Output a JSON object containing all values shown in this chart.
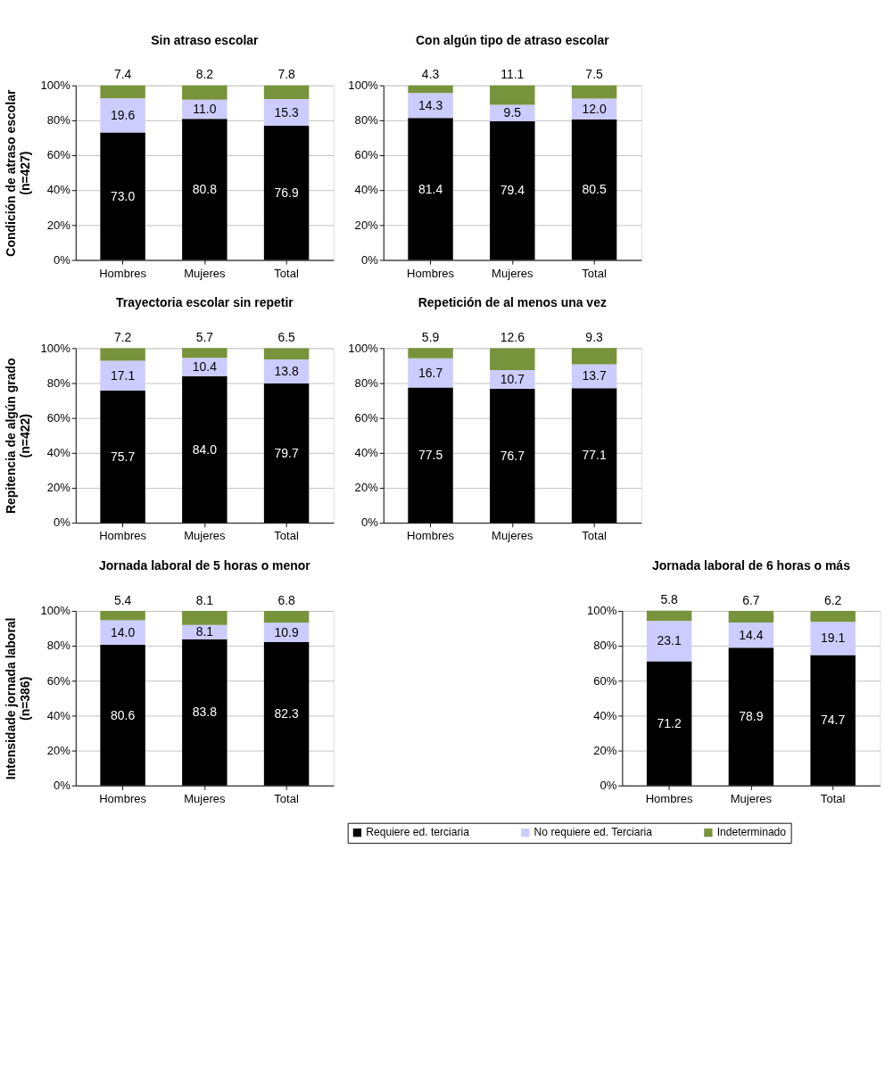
{
  "chart_data": [
    {
      "type": "bar",
      "stacked": true,
      "grid": "y",
      "legend": false,
      "title": "Sin atraso escolar",
      "ylabel": "Condición de atraso escolar\n(n=427)",
      "categories": [
        "Hombres",
        "Mujeres",
        "Total"
      ],
      "ylim": [
        0,
        100
      ],
      "yticks": [
        {
          "value": 0,
          "label": "0%"
        },
        {
          "value": 20,
          "label": "20%"
        },
        {
          "value": 40,
          "label": "40%"
        },
        {
          "value": 60,
          "label": "60%"
        },
        {
          "value": 80,
          "label": "80%"
        },
        {
          "value": 100,
          "label": "100%"
        }
      ],
      "series": [
        {
          "color": "#000000",
          "values": [
            73.0,
            80.8,
            76.9
          ],
          "value_labels": [
            "73.0",
            "80.8",
            "76.9"
          ]
        },
        {
          "color": "#ccccff",
          "values": [
            19.6,
            11.0,
            15.3
          ],
          "value_labels": [
            "19.6",
            "11.0",
            "15.3"
          ]
        },
        {
          "color": "#77933c",
          "values": [
            7.4,
            8.2,
            7.8
          ],
          "value_labels": [
            "7.4",
            "8.2",
            "7.8"
          ]
        }
      ]
    },
    {
      "type": "bar",
      "stacked": true,
      "grid": "y",
      "legend": false,
      "title": "Con algún tipo de atraso escolar",
      "categories": [
        "Hombres",
        "Mujeres",
        "Total"
      ],
      "ylim": [
        0,
        100
      ],
      "yticks": [
        {
          "value": 0,
          "label": "0%"
        },
        {
          "value": 20,
          "label": "20%"
        },
        {
          "value": 40,
          "label": "40%"
        },
        {
          "value": 60,
          "label": "60%"
        },
        {
          "value": 80,
          "label": "80%"
        },
        {
          "value": 100,
          "label": "100%"
        }
      ],
      "series": [
        {
          "color": "#000000",
          "values": [
            81.4,
            79.4,
            80.5
          ],
          "value_labels": [
            "81.4",
            "79.4",
            "80.5"
          ]
        },
        {
          "color": "#ccccff",
          "values": [
            14.3,
            9.5,
            12.0
          ],
          "value_labels": [
            "14.3",
            "9.5",
            "12.0"
          ]
        },
        {
          "color": "#77933c",
          "values": [
            4.3,
            11.1,
            7.5
          ],
          "value_labels": [
            "4.3",
            "11.1",
            "7.5"
          ]
        }
      ]
    },
    {
      "type": "bar",
      "stacked": true,
      "grid": "y",
      "legend": false,
      "title": "Trayectoria escolar sin repetir",
      "ylabel": "Repitencia de algún grado\n(n=422)",
      "categories": [
        "Hombres",
        "Mujeres",
        "Total"
      ],
      "ylim": [
        0,
        100
      ],
      "yticks": [
        {
          "value": 0,
          "label": "0%"
        },
        {
          "value": 20,
          "label": "20%"
        },
        {
          "value": 40,
          "label": "40%"
        },
        {
          "value": 60,
          "label": "60%"
        },
        {
          "value": 80,
          "label": "80%"
        },
        {
          "value": 100,
          "label": "100%"
        }
      ],
      "series": [
        {
          "color": "#000000",
          "values": [
            75.7,
            84.0,
            79.7
          ],
          "value_labels": [
            "75.7",
            "84.0",
            "79.7"
          ]
        },
        {
          "color": "#ccccff",
          "values": [
            17.1,
            10.4,
            13.8
          ],
          "value_labels": [
            "17.1",
            "10.4",
            "13.8"
          ]
        },
        {
          "color": "#77933c",
          "values": [
            7.2,
            5.7,
            6.5
          ],
          "value_labels": [
            "7.2",
            "5.7",
            "6.5"
          ]
        }
      ]
    },
    {
      "type": "bar",
      "stacked": true,
      "grid": "y",
      "legend": false,
      "title": "Repetición de al menos una vez",
      "categories": [
        "Hombres",
        "Mujeres",
        "Total"
      ],
      "ylim": [
        0,
        100
      ],
      "yticks": [
        {
          "value": 0,
          "label": "0%"
        },
        {
          "value": 20,
          "label": "20%"
        },
        {
          "value": 40,
          "label": "40%"
        },
        {
          "value": 60,
          "label": "60%"
        },
        {
          "value": 80,
          "label": "80%"
        },
        {
          "value": 100,
          "label": "100%"
        }
      ],
      "series": [
        {
          "color": "#000000",
          "values": [
            77.5,
            76.7,
            77.1
          ],
          "value_labels": [
            "77.5",
            "76.7",
            "77.1"
          ]
        },
        {
          "color": "#ccccff",
          "values": [
            16.7,
            10.7,
            13.7
          ],
          "value_labels": [
            "16.7",
            "10.7",
            "13.7"
          ]
        },
        {
          "color": "#77933c",
          "values": [
            5.9,
            12.6,
            9.3
          ],
          "value_labels": [
            "5.9",
            "12.6",
            "9.3"
          ]
        }
      ]
    },
    {
      "type": "bar",
      "stacked": true,
      "grid": "y",
      "legend": false,
      "title": "Jornada laboral de 5 horas o menor",
      "ylabel": "Intensidade jornada laboral\n(n=386)",
      "categories": [
        "Hombres",
        "Mujeres",
        "Total"
      ],
      "ylim": [
        0,
        100
      ],
      "yticks": [
        {
          "value": 0,
          "label": "0%"
        },
        {
          "value": 20,
          "label": "20%"
        },
        {
          "value": 40,
          "label": "40%"
        },
        {
          "value": 60,
          "label": "60%"
        },
        {
          "value": 80,
          "label": "80%"
        },
        {
          "value": 100,
          "label": "100%"
        }
      ],
      "series": [
        {
          "color": "#000000",
          "values": [
            80.6,
            83.8,
            82.3
          ],
          "value_labels": [
            "80.6",
            "83.8",
            "82.3"
          ]
        },
        {
          "color": "#ccccff",
          "values": [
            14.0,
            8.1,
            10.9
          ],
          "value_labels": [
            "14.0",
            "8.1",
            "10.9"
          ]
        },
        {
          "color": "#77933c",
          "values": [
            5.4,
            8.1,
            6.8
          ],
          "value_labels": [
            "5.4",
            "8.1",
            "6.8"
          ]
        }
      ]
    },
    {
      "type": "bar",
      "stacked": true,
      "grid": "y",
      "legend": "bottom",
      "title": "Jornada laboral de 6 horas o más",
      "categories": [
        "Hombres",
        "Mujeres",
        "Total"
      ],
      "ylim": [
        0,
        100
      ],
      "yticks": [
        {
          "value": 0,
          "label": "0%"
        },
        {
          "value": 20,
          "label": "20%"
        },
        {
          "value": 40,
          "label": "40%"
        },
        {
          "value": 60,
          "label": "60%"
        },
        {
          "value": 80,
          "label": "80%"
        },
        {
          "value": 100,
          "label": "100%"
        }
      ],
      "series": [
        {
          "name": "Requiere ed. terciaria",
          "color": "#000000",
          "values": [
            71.2,
            78.9,
            74.7
          ],
          "value_labels": [
            "71.2",
            "78.9",
            "74.7"
          ]
        },
        {
          "name": "No requiere ed. Terciaria",
          "color": "#ccccff",
          "values": [
            23.1,
            14.4,
            19.1
          ],
          "value_labels": [
            "23.1",
            "14.4",
            "19.1"
          ]
        },
        {
          "name": "Indeterminado",
          "color": "#77933c",
          "values": [
            5.8,
            6.7,
            6.2
          ],
          "value_labels": [
            "5.8",
            "6.7",
            "6.2"
          ]
        }
      ]
    }
  ]
}
